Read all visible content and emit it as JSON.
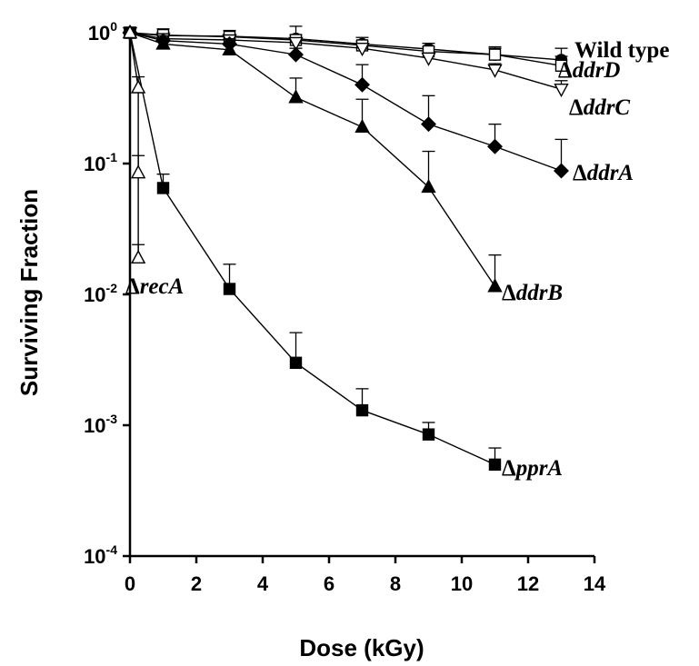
{
  "chart_data": {
    "type": "line",
    "xlabel": "Dose (kGy)",
    "ylabel": "Surviving Fraction",
    "xlim": [
      0,
      14
    ],
    "ylim": [
      0.0001,
      1
    ],
    "yscale": "log",
    "x_ticks": [
      {
        "value": 0,
        "label": "0"
      },
      {
        "value": 2,
        "label": "2"
      },
      {
        "value": 4,
        "label": "4"
      },
      {
        "value": 6,
        "label": "6"
      },
      {
        "value": 8,
        "label": "8"
      },
      {
        "value": 10,
        "label": "10"
      },
      {
        "value": 12,
        "label": "12"
      },
      {
        "value": 14,
        "label": "14"
      }
    ],
    "y_ticks": [
      {
        "value": 1,
        "base": "10",
        "exp": "0"
      },
      {
        "value": 0.1,
        "base": "10",
        "exp": "-1"
      },
      {
        "value": 0.01,
        "base": "10",
        "exp": "-2"
      },
      {
        "value": 0.001,
        "base": "10",
        "exp": "-3"
      },
      {
        "value": 0.0001,
        "base": "10",
        "exp": "-4"
      }
    ],
    "series": [
      {
        "name": "Wild type",
        "delta": false,
        "marker": "circle-filled",
        "points": [
          {
            "x": 0,
            "y": 1.0
          },
          {
            "x": 1,
            "y": 0.95
          },
          {
            "x": 3,
            "y": 0.94
          },
          {
            "x": 5,
            "y": 0.9
          },
          {
            "x": 7,
            "y": 0.82
          },
          {
            "x": 9,
            "y": 0.75
          },
          {
            "x": 11,
            "y": 0.68
          },
          {
            "x": 13,
            "y": 0.62
          }
        ],
        "err": [
          0,
          0.12,
          0.1,
          0.22,
          0.1,
          0.08,
          0.1,
          0.14
        ]
      },
      {
        "name": "ddrD",
        "delta": true,
        "marker": "square-open",
        "points": [
          {
            "x": 0,
            "y": 1.0
          },
          {
            "x": 1,
            "y": 0.96
          },
          {
            "x": 3,
            "y": 0.93
          },
          {
            "x": 5,
            "y": 0.88
          },
          {
            "x": 7,
            "y": 0.8
          },
          {
            "x": 9,
            "y": 0.72
          },
          {
            "x": 11,
            "y": 0.68
          },
          {
            "x": 13,
            "y": 0.56
          }
        ],
        "err": [
          0,
          0.05,
          0.05,
          0.08,
          0.06,
          0.06,
          0.08,
          0.1
        ]
      },
      {
        "name": "ddrC",
        "delta": true,
        "marker": "triangle-down-open",
        "points": [
          {
            "x": 0,
            "y": 1.0
          },
          {
            "x": 1,
            "y": 0.9
          },
          {
            "x": 3,
            "y": 0.88
          },
          {
            "x": 5,
            "y": 0.84
          },
          {
            "x": 7,
            "y": 0.76
          },
          {
            "x": 9,
            "y": 0.64
          },
          {
            "x": 11,
            "y": 0.52
          },
          {
            "x": 13,
            "y": 0.37
          }
        ],
        "err": [
          0,
          0.05,
          0.05,
          0.06,
          0.06,
          0.06,
          0.06,
          0.06
        ]
      },
      {
        "name": "ddrA",
        "delta": true,
        "marker": "diamond-filled",
        "points": [
          {
            "x": 0,
            "y": 1.0
          },
          {
            "x": 1,
            "y": 0.87
          },
          {
            "x": 3,
            "y": 0.82
          },
          {
            "x": 5,
            "y": 0.68
          },
          {
            "x": 7,
            "y": 0.4
          },
          {
            "x": 9,
            "y": 0.2
          },
          {
            "x": 11,
            "y": 0.135
          },
          {
            "x": 13,
            "y": 0.088
          }
        ],
        "err": [
          0,
          0.08,
          0.08,
          0.08,
          0.17,
          0.13,
          0.065,
          0.065
        ]
      },
      {
        "name": "ddrB",
        "delta": true,
        "marker": "triangle-up-filled",
        "points": [
          {
            "x": 0,
            "y": 1.0
          },
          {
            "x": 1,
            "y": 0.82
          },
          {
            "x": 3,
            "y": 0.74
          },
          {
            "x": 5,
            "y": 0.32
          },
          {
            "x": 7,
            "y": 0.19
          },
          {
            "x": 9,
            "y": 0.066
          },
          {
            "x": 11,
            "y": 0.0115
          }
        ],
        "err": [
          0,
          0.08,
          0.06,
          0.13,
          0.12,
          0.058,
          0.0085
        ]
      },
      {
        "name": "pprA",
        "delta": true,
        "marker": "square-filled",
        "points": [
          {
            "x": 0,
            "y": 1.0
          },
          {
            "x": 1,
            "y": 0.065
          },
          {
            "x": 3,
            "y": 0.011
          },
          {
            "x": 5,
            "y": 0.003
          },
          {
            "x": 7,
            "y": 0.0013
          },
          {
            "x": 9,
            "y": 0.00085
          },
          {
            "x": 11,
            "y": 0.0005
          }
        ],
        "err": [
          0,
          0.018,
          0.006,
          0.0021,
          0.0006,
          0.0002,
          0.00017
        ]
      },
      {
        "name": "recA",
        "delta": true,
        "marker": "triangle-up-open",
        "points": [
          {
            "x": 0,
            "y": 1.0
          },
          {
            "x": 0.25,
            "y": 0.38
          },
          {
            "x": 0.25,
            "y": 0.085
          },
          {
            "x": 0.25,
            "y": 0.019
          }
        ],
        "err": [
          0,
          0.08,
          0.03,
          0.005
        ]
      }
    ]
  }
}
